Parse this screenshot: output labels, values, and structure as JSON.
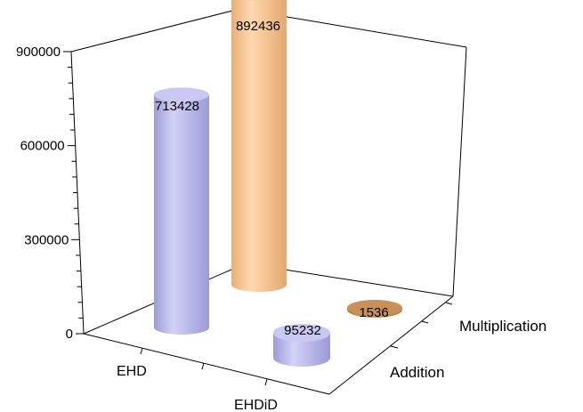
{
  "chart_data": {
    "type": "bar",
    "title": "",
    "xlabel": "",
    "ylabel": "",
    "categories": [
      "EHD",
      "EHDiD"
    ],
    "series": [
      {
        "name": "Addition",
        "values": [
          713428,
          95232
        ]
      },
      {
        "name": "Multiplication",
        "values": [
          892436,
          1536
        ]
      }
    ],
    "data_labels": [
      "713428",
      "95232",
      "892436",
      "1536"
    ],
    "y_ticks": [
      "0",
      "300000",
      "600000",
      "900000"
    ],
    "ylim": [
      0,
      900000
    ],
    "grid": false,
    "legend": "none",
    "bar_shape": "cylinder",
    "colors": {
      "Addition": "#b4b4ec",
      "Multiplication": "#f2c08e",
      "Multiplication_short": "#c9905a"
    }
  }
}
